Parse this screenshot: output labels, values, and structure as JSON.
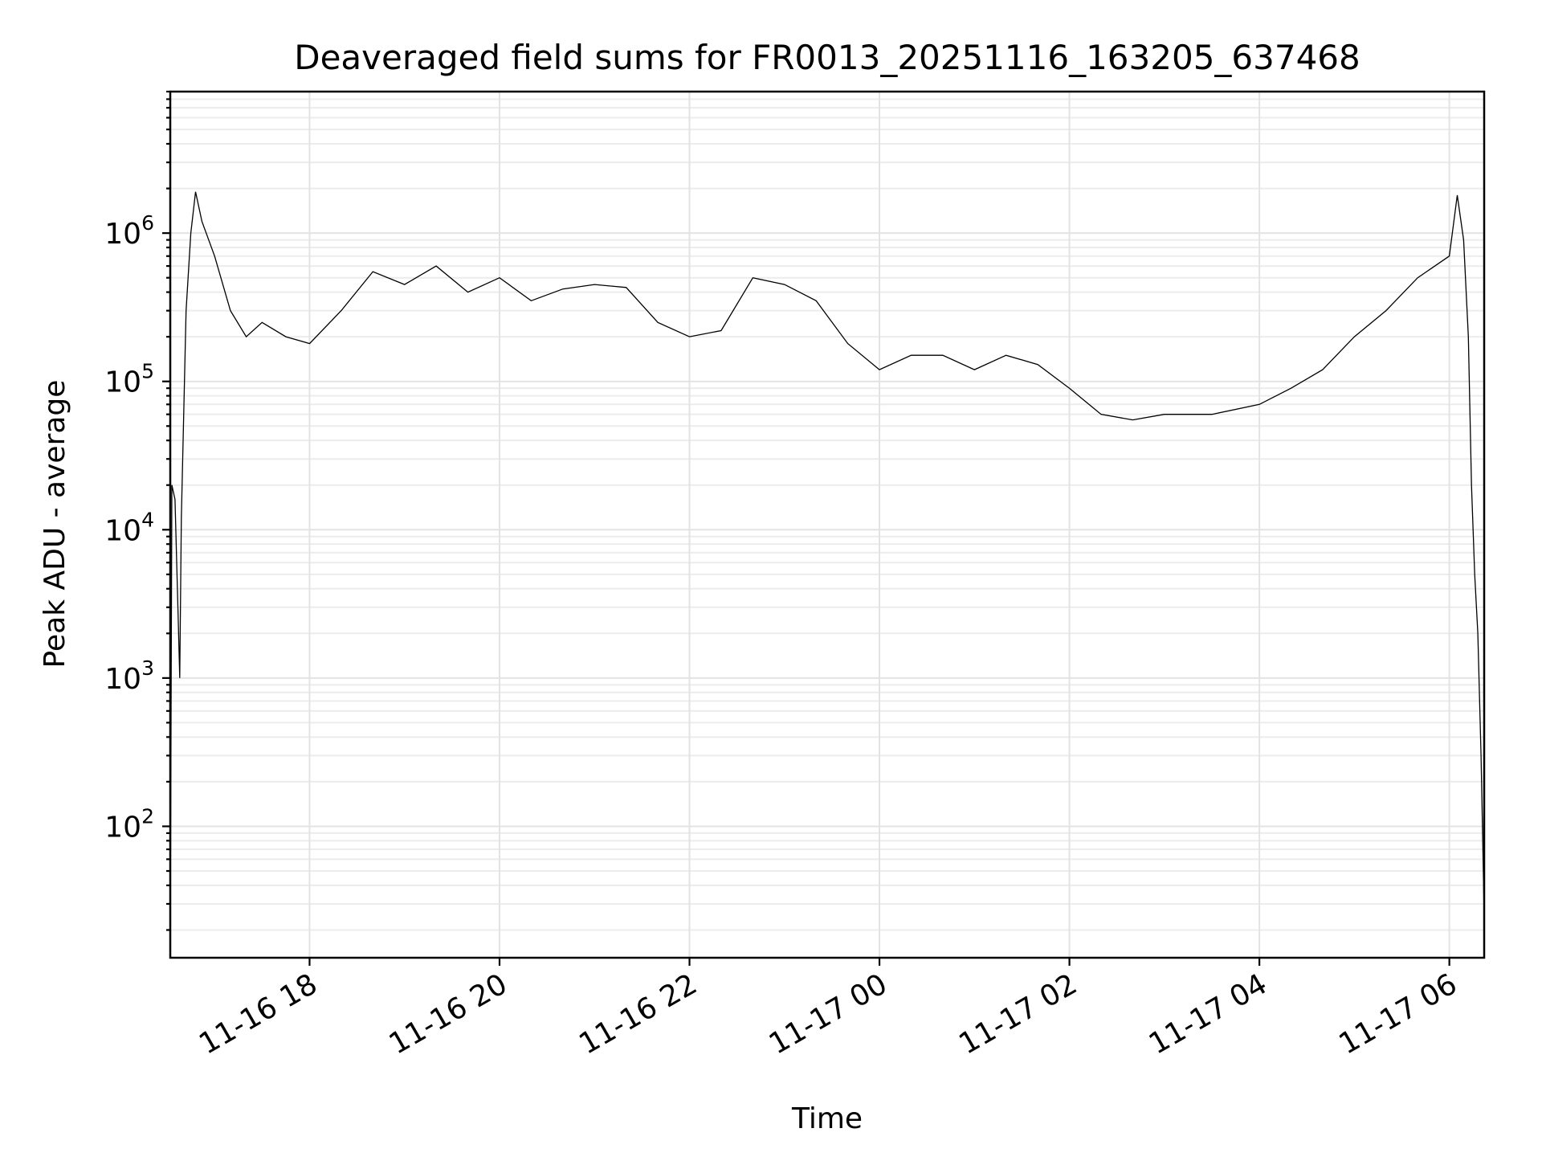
{
  "chart_data": {
    "type": "line",
    "title": "Deaveraged field sums for FR0013_20251116_163205_637468",
    "xlabel": "Time",
    "ylabel": "Peak ADU - average",
    "xscale": "time",
    "yscale": "log",
    "xlim": [
      "2025-11-16 16:32",
      "2025-11-17 06:22"
    ],
    "ylim": [
      13,
      9000000
    ],
    "grid": {
      "major": true,
      "minor_y": true
    },
    "legend": "none",
    "line_color": "#000000",
    "x_ticks": [
      {
        "t": "2025-11-16 18:00",
        "label": "11-16 18"
      },
      {
        "t": "2025-11-16 20:00",
        "label": "11-16 20"
      },
      {
        "t": "2025-11-16 22:00",
        "label": "11-16 22"
      },
      {
        "t": "2025-11-17 00:00",
        "label": "11-17 00"
      },
      {
        "t": "2025-11-17 02:00",
        "label": "11-17 02"
      },
      {
        "t": "2025-11-17 04:00",
        "label": "11-17 04"
      },
      {
        "t": "2025-11-17 06:00",
        "label": "11-17 06"
      }
    ],
    "y_ticks": [
      {
        "v": 100,
        "base": "10",
        "exp": "2"
      },
      {
        "v": 1000,
        "base": "10",
        "exp": "3"
      },
      {
        "v": 10000,
        "base": "10",
        "exp": "4"
      },
      {
        "v": 100000,
        "base": "10",
        "exp": "5"
      },
      {
        "v": 1000000,
        "base": "10",
        "exp": "6"
      }
    ],
    "series": [
      {
        "points": [
          [
            "2025-11-16 16:32",
            15
          ],
          [
            "2025-11-16 16:33",
            20000
          ],
          [
            "2025-11-16 16:35",
            16000
          ],
          [
            "2025-11-16 16:37",
            2500
          ],
          [
            "2025-11-16 16:38",
            1000
          ],
          [
            "2025-11-16 16:39",
            12000
          ],
          [
            "2025-11-16 16:42",
            300000
          ],
          [
            "2025-11-16 16:45",
            1000000
          ],
          [
            "2025-11-16 16:48",
            1900000
          ],
          [
            "2025-11-16 16:52",
            1200000
          ],
          [
            "2025-11-16 17:00",
            700000
          ],
          [
            "2025-11-16 17:10",
            300000
          ],
          [
            "2025-11-16 17:20",
            200000
          ],
          [
            "2025-11-16 17:30",
            250000
          ],
          [
            "2025-11-16 17:45",
            200000
          ],
          [
            "2025-11-16 18:00",
            180000
          ],
          [
            "2025-11-16 18:20",
            300000
          ],
          [
            "2025-11-16 18:40",
            550000
          ],
          [
            "2025-11-16 19:00",
            450000
          ],
          [
            "2025-11-16 19:20",
            600000
          ],
          [
            "2025-11-16 19:40",
            400000
          ],
          [
            "2025-11-16 20:00",
            500000
          ],
          [
            "2025-11-16 20:20",
            350000
          ],
          [
            "2025-11-16 20:40",
            420000
          ],
          [
            "2025-11-16 21:00",
            450000
          ],
          [
            "2025-11-16 21:20",
            430000
          ],
          [
            "2025-11-16 21:40",
            250000
          ],
          [
            "2025-11-16 22:00",
            200000
          ],
          [
            "2025-11-16 22:20",
            220000
          ],
          [
            "2025-11-16 22:40",
            500000
          ],
          [
            "2025-11-16 23:00",
            450000
          ],
          [
            "2025-11-16 23:20",
            350000
          ],
          [
            "2025-11-16 23:40",
            180000
          ],
          [
            "2025-11-17 00:00",
            120000
          ],
          [
            "2025-11-17 00:20",
            150000
          ],
          [
            "2025-11-17 00:40",
            150000
          ],
          [
            "2025-11-17 01:00",
            120000
          ],
          [
            "2025-11-17 01:20",
            150000
          ],
          [
            "2025-11-17 01:40",
            130000
          ],
          [
            "2025-11-17 02:00",
            90000
          ],
          [
            "2025-11-17 02:20",
            60000
          ],
          [
            "2025-11-17 02:40",
            55000
          ],
          [
            "2025-11-17 03:00",
            60000
          ],
          [
            "2025-11-17 03:30",
            60000
          ],
          [
            "2025-11-17 04:00",
            70000
          ],
          [
            "2025-11-17 04:20",
            90000
          ],
          [
            "2025-11-17 04:40",
            120000
          ],
          [
            "2025-11-17 05:00",
            200000
          ],
          [
            "2025-11-17 05:20",
            300000
          ],
          [
            "2025-11-17 05:40",
            500000
          ],
          [
            "2025-11-17 06:00",
            700000
          ],
          [
            "2025-11-17 06:05",
            1800000
          ],
          [
            "2025-11-17 06:09",
            900000
          ],
          [
            "2025-11-17 06:12",
            200000
          ],
          [
            "2025-11-17 06:14",
            20000
          ],
          [
            "2025-11-17 06:16",
            5000
          ],
          [
            "2025-11-17 06:18",
            2000
          ],
          [
            "2025-11-17 06:20",
            300
          ],
          [
            "2025-11-17 06:22",
            25
          ]
        ]
      }
    ]
  }
}
